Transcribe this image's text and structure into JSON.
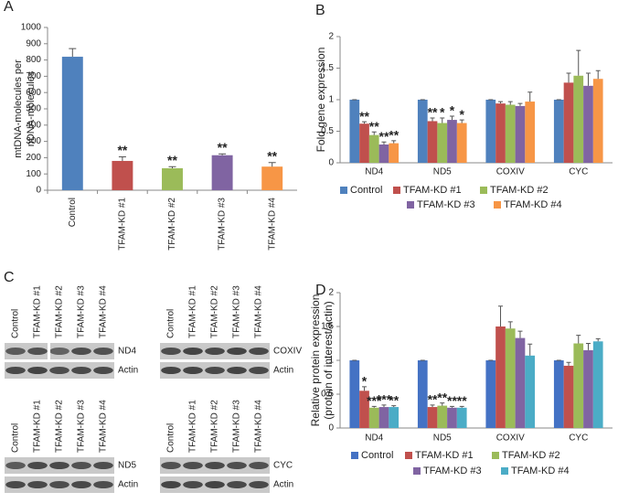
{
  "chart_data": [
    {
      "type": "bar",
      "panel": "A",
      "ylabel": [
        "mtDNA-molecules per",
        "nDNA-molecules"
      ],
      "categories": [
        "Control",
        "TFAM-KD #1",
        "TFAM-KD #2",
        "TFAM-KD #3",
        "TFAM-KD #4"
      ],
      "values": [
        820,
        180,
        135,
        215,
        145
      ],
      "errors": [
        50,
        25,
        10,
        8,
        25
      ],
      "colors": [
        "#4f81bd",
        "#c0504d",
        "#9bbb59",
        "#8064a2",
        "#f79646"
      ],
      "significance": [
        null,
        "**",
        "**",
        "**",
        "**"
      ],
      "ylim": [
        0,
        1000
      ],
      "yticks": [
        0,
        100,
        200,
        300,
        400,
        500,
        600,
        700,
        800,
        900,
        1000
      ],
      "grid": false
    },
    {
      "type": "grouped_bar",
      "panel": "B",
      "ylabel": [
        "Fold gene expression"
      ],
      "categories": [
        "ND4",
        "ND5",
        "COXIV",
        "CYC"
      ],
      "series": [
        {
          "name": "Control",
          "color": "#4f81bd",
          "values": [
            1,
            1,
            1,
            1
          ],
          "errors": [
            0,
            0,
            0,
            0
          ],
          "significance": [
            null,
            null,
            null,
            null
          ]
        },
        {
          "name": "TFAM-KD #1",
          "color": "#c0504d",
          "values": [
            0.62,
            0.66,
            0.94,
            1.27
          ],
          "errors": [
            0.03,
            0.05,
            0.03,
            0.15
          ],
          "significance": [
            "**",
            "**",
            null,
            null
          ]
        },
        {
          "name": "TFAM-KD #2",
          "color": "#9bbb59",
          "values": [
            0.44,
            0.63,
            0.92,
            1.38
          ],
          "errors": [
            0.05,
            0.08,
            0.05,
            0.4
          ],
          "significance": [
            "**",
            "*",
            null,
            null
          ]
        },
        {
          "name": "TFAM-KD #3",
          "color": "#8064a2",
          "values": [
            0.29,
            0.68,
            0.9,
            1.22
          ],
          "errors": [
            0.04,
            0.06,
            0.04,
            0.2
          ],
          "significance": [
            "**",
            "*",
            null,
            null
          ]
        },
        {
          "name": "TFAM-KD #4",
          "color": "#f79646",
          "values": [
            0.31,
            0.63,
            0.97,
            1.33
          ],
          "errors": [
            0.04,
            0.05,
            0.15,
            0.13
          ],
          "significance": [
            "**",
            "*",
            null,
            null
          ]
        }
      ],
      "ylim": [
        0,
        2
      ],
      "yticks": [
        0,
        0.5,
        1,
        1.5,
        2
      ],
      "grid": false
    },
    {
      "type": "grouped_bar",
      "panel": "D",
      "ylabel": [
        "Relative protein expression",
        "(protein of interest/actin)"
      ],
      "categories": [
        "ND4",
        "ND5",
        "COXIV",
        "CYC"
      ],
      "series": [
        {
          "name": "Control",
          "color": "#4472c4",
          "values": [
            1,
            1,
            1,
            1
          ],
          "errors": [
            0,
            0,
            0,
            0
          ],
          "significance": [
            null,
            null,
            null,
            null
          ]
        },
        {
          "name": "TFAM-KD #1",
          "color": "#c0504d",
          "values": [
            0.55,
            0.31,
            1.5,
            0.92
          ],
          "errors": [
            0.06,
            0.03,
            0.3,
            0.05
          ],
          "significance": [
            "*",
            "**",
            null,
            null
          ]
        },
        {
          "name": "TFAM-KD #2",
          "color": "#9bbb59",
          "values": [
            0.3,
            0.33,
            1.47,
            1.25
          ],
          "errors": [
            0.02,
            0.04,
            0.1,
            0.12
          ],
          "significance": [
            "***",
            "**",
            null,
            null
          ]
        },
        {
          "name": "TFAM-KD #3",
          "color": "#8064a2",
          "values": [
            0.31,
            0.3,
            1.33,
            1.15
          ],
          "errors": [
            0.03,
            0.02,
            0.1,
            0.1
          ],
          "significance": [
            "***",
            "**",
            null,
            null
          ]
        },
        {
          "name": "TFAM-KD #4",
          "color": "#4bacc6",
          "values": [
            0.31,
            0.3,
            1.07,
            1.28
          ],
          "errors": [
            0.02,
            0.02,
            0.17,
            0.04
          ],
          "significance": [
            "**",
            "**",
            null,
            null
          ]
        }
      ],
      "ylim": [
        0,
        2
      ],
      "yticks": [
        0,
        0.5,
        1,
        1.5,
        2
      ],
      "grid": false
    }
  ],
  "panel_c": {
    "panel": "C",
    "blots": [
      {
        "lanes": [
          "Control",
          "TFAM-KD #1",
          "TFAM-KD #2",
          "TFAM-KD #3",
          "TFAM-KD #4"
        ],
        "bands": [
          "ND4",
          "Actin"
        ]
      },
      {
        "lanes": [
          "Control",
          "TFAM-KD #1",
          "TFAM-KD #2",
          "TFAM-KD #3",
          "TFAM-KD #4"
        ],
        "bands": [
          "COXIV",
          "Actin"
        ]
      },
      {
        "lanes": [
          "Control",
          "TFAM-KD #1",
          "TFAM-KD #2",
          "TFAM-KD #3",
          "TFAM-KD #4"
        ],
        "bands": [
          "ND5",
          "Actin"
        ]
      },
      {
        "lanes": [
          "Control",
          "TFAM-KD #1",
          "TFAM-KD #2",
          "TFAM-KD #3",
          "TFAM-KD #4"
        ],
        "bands": [
          "CYC",
          "Actin"
        ]
      }
    ]
  }
}
